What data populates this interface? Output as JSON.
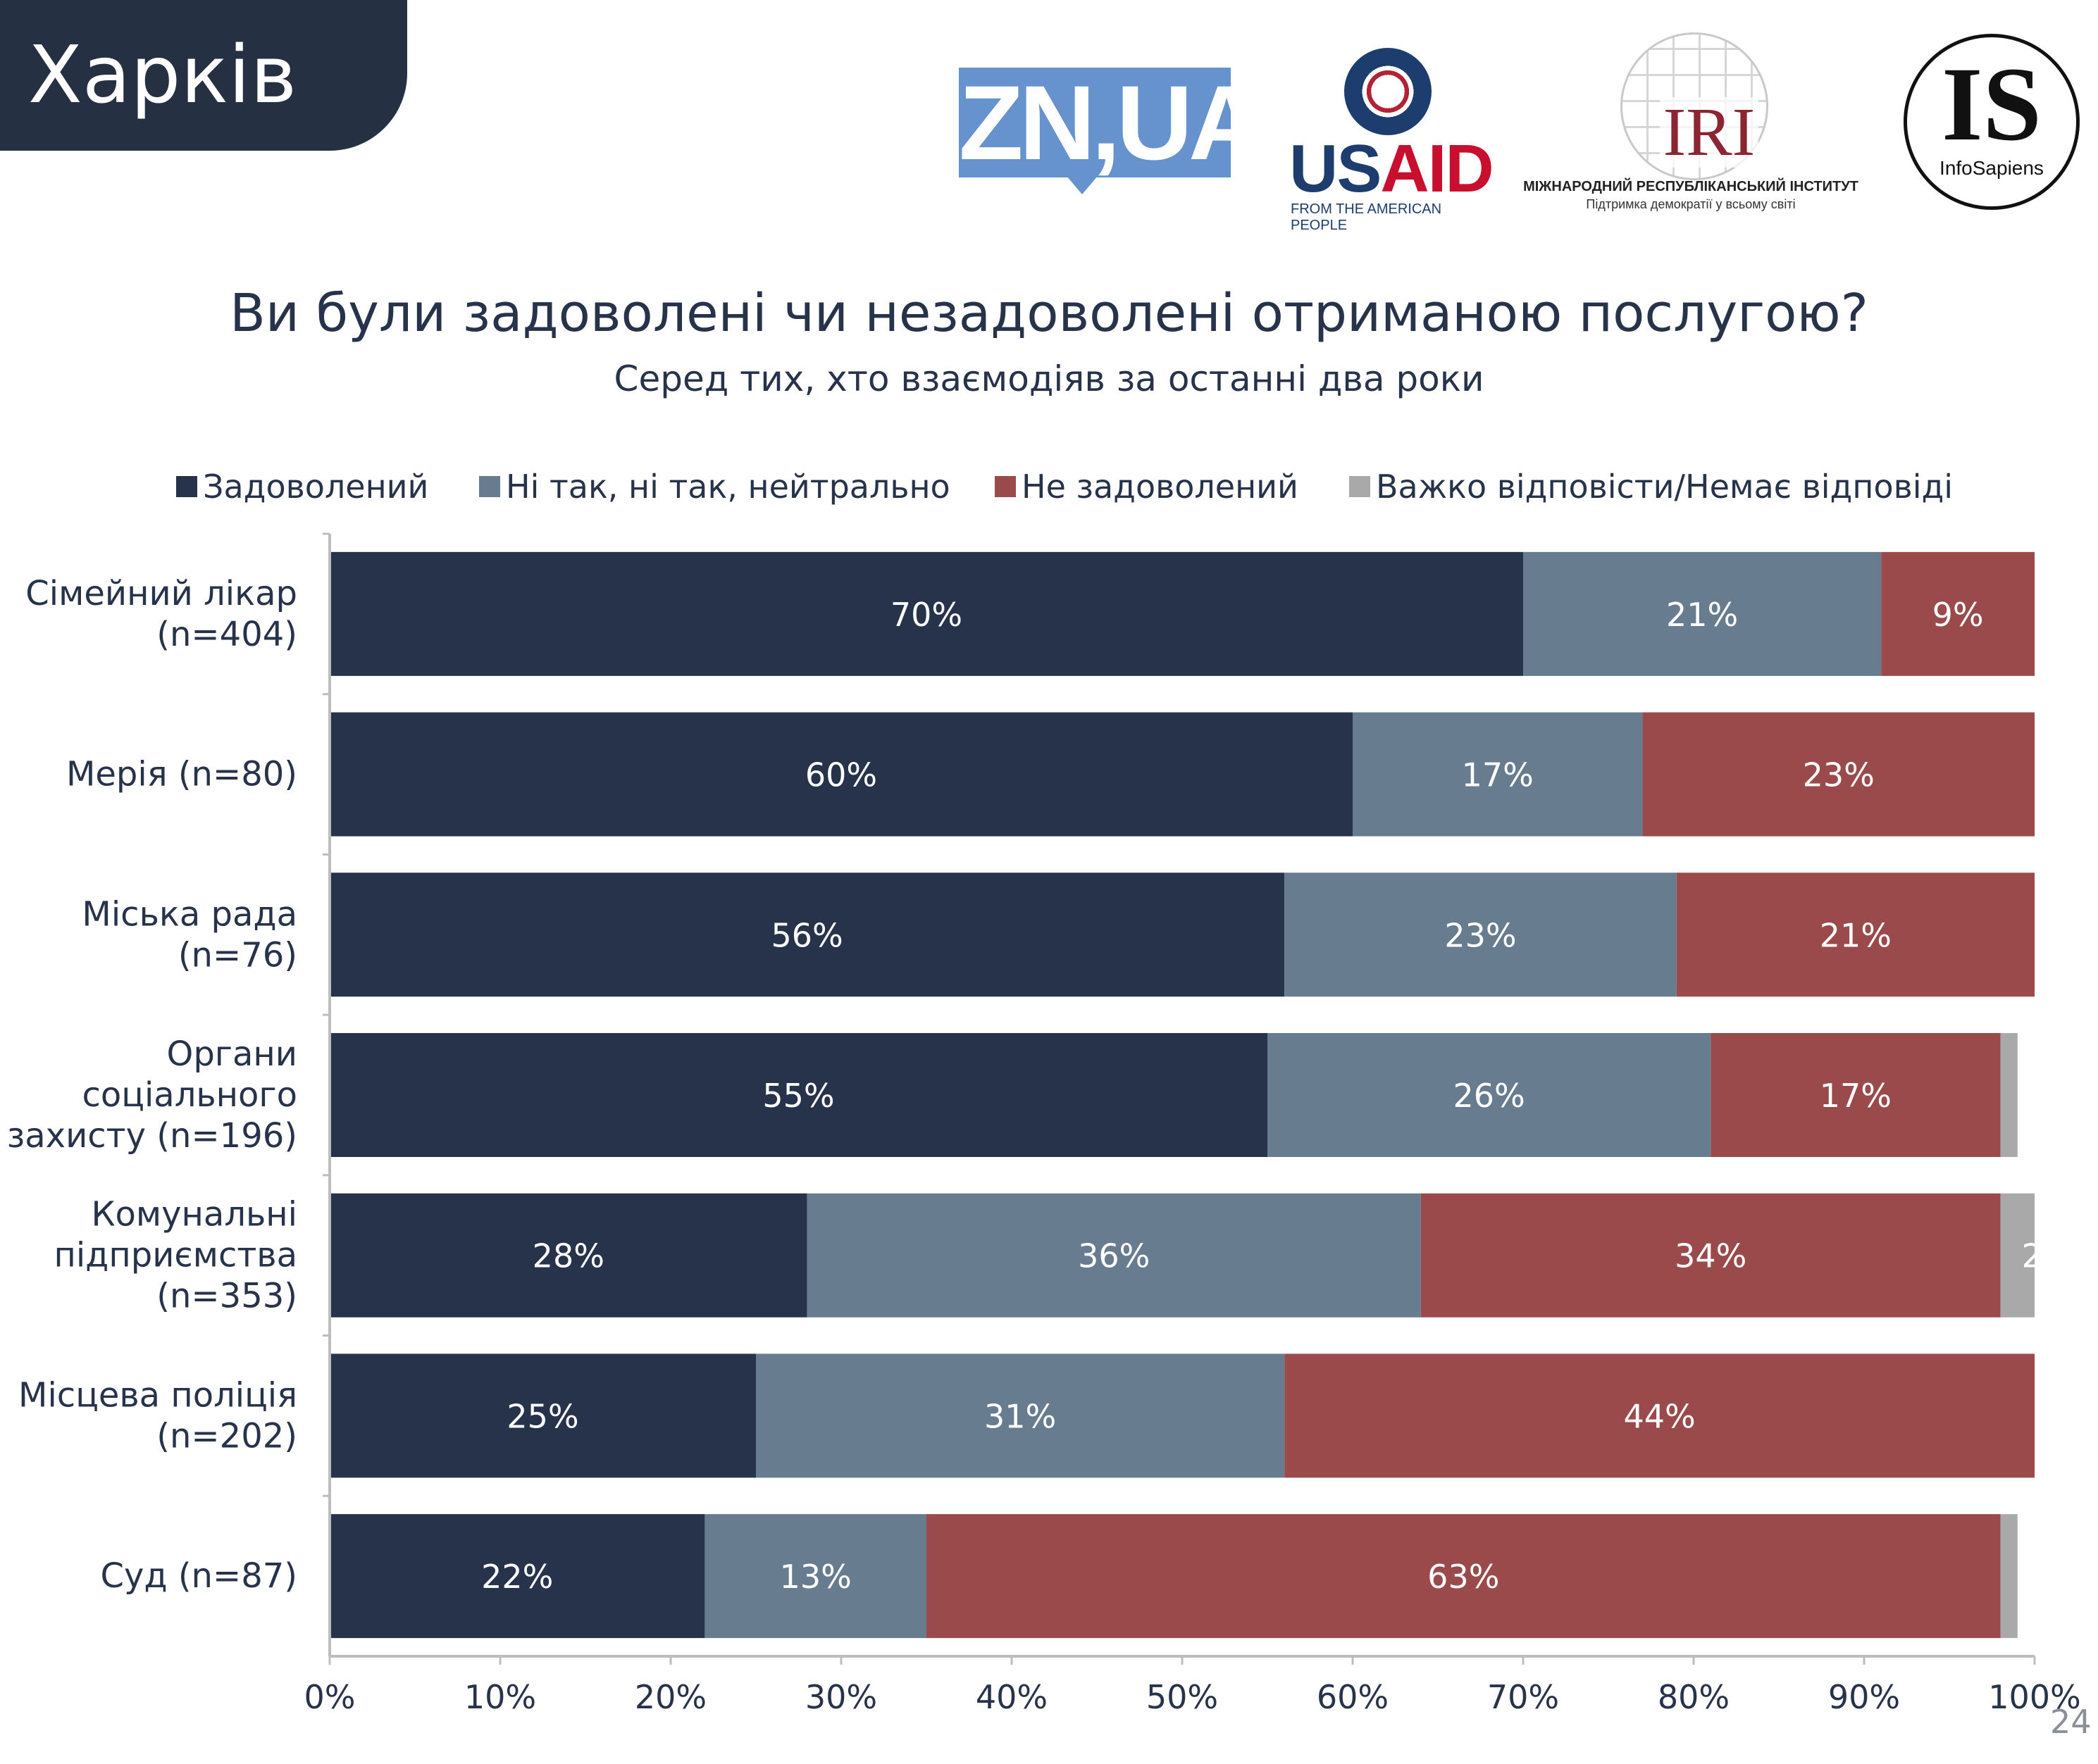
{
  "header": {
    "city": "Харків"
  },
  "logos": {
    "zn": "ZN,UA",
    "usaid": "USAID",
    "usaid_tagline": "FROM THE AMERICAN PEOPLE",
    "iri": "IRI",
    "iri_name": "МІЖНАРОДНИЙ РЕСПУБЛІКАНСЬКИЙ ІНСТИТУТ",
    "iri_tagline": "Підтримка демократії у всьому світі",
    "is": "IS",
    "is_name": "InfoSapiens"
  },
  "page_number": "24",
  "colors": {
    "header_bg": "#253143",
    "satisfied": "#27334a",
    "neutral": "#687c8f",
    "dissatisfied": "#9b4a4b",
    "no_answer": "#a9a9a9"
  },
  "chart_data": {
    "type": "bar",
    "orientation": "horizontal",
    "stacked": true,
    "title": "Ви були задоволені чи незадоволені отриманою послугою?",
    "subtitle": "Серед тих, хто взаємодіяв за останні два роки",
    "legend_position": "top",
    "categories": [
      [
        "Сімейний лікар",
        "(n=404)"
      ],
      [
        "Мерія (n=80)"
      ],
      [
        "Міська рада",
        "(n=76)"
      ],
      [
        "Органи",
        "соціального",
        "захисту (n=196)"
      ],
      [
        "Комунальні",
        "підприємства",
        "(n=353)"
      ],
      [
        "Місцева поліція",
        "(n=202)"
      ],
      [
        "Суд (n=87)"
      ]
    ],
    "series": [
      {
        "name": "Задоволений",
        "color": "#27334a",
        "values": [
          70,
          60,
          56,
          55,
          28,
          25,
          22
        ]
      },
      {
        "name": "Ні так, ні так, нейтрально",
        "color": "#687c8f",
        "values": [
          21,
          17,
          23,
          26,
          36,
          31,
          13
        ]
      },
      {
        "name": "Не задоволений",
        "color": "#9b4a4b",
        "values": [
          9,
          23,
          21,
          17,
          34,
          44,
          63
        ]
      },
      {
        "name": "Важко відповісти/Немає відповіді",
        "color": "#a9a9a9",
        "values": [
          1,
          0,
          0,
          1,
          2,
          0,
          1
        ]
      }
    ],
    "xlim": [
      0,
      100
    ],
    "xticks": [
      "0%",
      "10%",
      "20%",
      "30%",
      "40%",
      "50%",
      "60%",
      "70%",
      "80%",
      "90%",
      "100%"
    ],
    "grid": false
  }
}
